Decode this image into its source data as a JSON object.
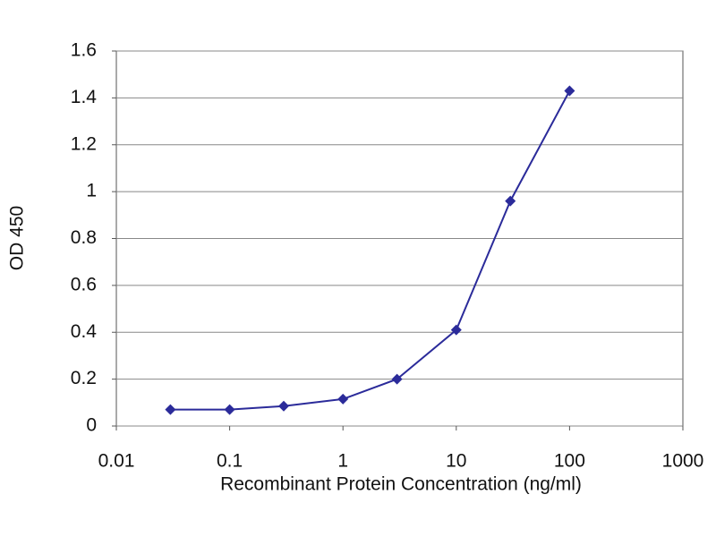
{
  "chart_data": {
    "type": "line",
    "x_label": "Recombinant Protein Concentration (ng/ml)",
    "y_label": "OD 450",
    "x": [
      0.03,
      0.1,
      0.3,
      1,
      3,
      10,
      30,
      100
    ],
    "series": [
      {
        "name": "OD 450",
        "color": "#2b2b9a",
        "values": [
          0.07,
          0.07,
          0.085,
          0.115,
          0.2,
          0.41,
          0.96,
          1.43
        ]
      }
    ],
    "xscale": "log",
    "xlim": [
      0.01,
      1000
    ],
    "xticks": [
      0.01,
      0.1,
      1,
      10,
      100,
      1000
    ],
    "ylim": [
      0,
      1.6
    ],
    "yticks": [
      0,
      0.2,
      0.4,
      0.6,
      0.8,
      1,
      1.2,
      1.4,
      1.6
    ],
    "grid": true
  }
}
